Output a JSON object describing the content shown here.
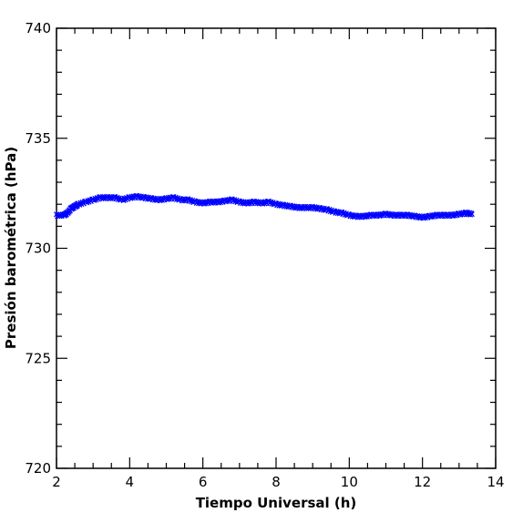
{
  "chart_data": {
    "type": "scatter",
    "title": "",
    "xlabel": "Tiempo Universal (h)",
    "ylabel": "Presión barométrica (hPa)",
    "xlim": [
      2,
      14
    ],
    "ylim": [
      720,
      740
    ],
    "x_major_ticks": [
      2,
      4,
      6,
      8,
      10,
      12,
      14
    ],
    "x_tick_labels": [
      "2",
      "4",
      "6",
      "8",
      "10",
      "12",
      "14"
    ],
    "x_minor_step": 0.5,
    "y_major_ticks": [
      720,
      725,
      730,
      735,
      740
    ],
    "y_tick_labels": [
      "720",
      "725",
      "730",
      "735",
      "740"
    ],
    "y_minor_step": 1,
    "grid": false,
    "marker": "x",
    "series": [
      {
        "color": "#0000ff",
        "x": [
          2.0,
          2.2,
          2.3,
          2.4,
          2.5,
          2.6,
          2.8,
          3.0,
          3.2,
          3.4,
          3.6,
          3.8,
          4.0,
          4.2,
          4.4,
          4.6,
          4.8,
          5.0,
          5.2,
          5.4,
          5.6,
          5.8,
          6.0,
          6.2,
          6.4,
          6.6,
          6.8,
          7.0,
          7.2,
          7.4,
          7.6,
          7.8,
          8.0,
          8.2,
          8.4,
          8.6,
          8.8,
          9.0,
          9.2,
          9.4,
          9.6,
          9.8,
          10.0,
          10.2,
          10.4,
          10.6,
          10.8,
          11.0,
          11.2,
          11.4,
          11.6,
          11.8,
          12.0,
          12.2,
          12.4,
          12.6,
          12.8,
          13.0,
          13.2,
          13.35
        ],
        "y": [
          731.5,
          731.5,
          731.6,
          731.8,
          731.9,
          732.0,
          732.1,
          732.2,
          732.3,
          732.3,
          732.3,
          732.2,
          732.3,
          732.35,
          732.3,
          732.25,
          732.2,
          732.25,
          732.3,
          732.2,
          732.2,
          732.1,
          732.05,
          732.1,
          732.1,
          732.15,
          732.2,
          732.1,
          732.05,
          732.1,
          732.05,
          732.1,
          732.0,
          731.95,
          731.9,
          731.85,
          731.85,
          731.85,
          731.8,
          731.75,
          731.65,
          731.6,
          731.5,
          731.45,
          731.45,
          731.5,
          731.5,
          731.55,
          731.5,
          731.5,
          731.5,
          731.45,
          731.4,
          731.45,
          731.5,
          731.5,
          731.5,
          731.55,
          731.6,
          731.55
        ]
      }
    ]
  }
}
